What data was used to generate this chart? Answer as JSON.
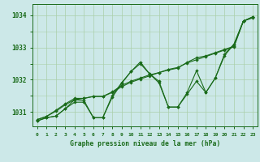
{
  "bg_color": "#cce8e8",
  "plot_bg_color": "#cce8e8",
  "line_color": "#1a6b1a",
  "grid_color": "#aacfaa",
  "xlabel": "Graphe pression niveau de la mer (hPa)",
  "xlabel_color": "#1a6b1a",
  "tick_color": "#1a6b1a",
  "xlim": [
    -0.5,
    23.5
  ],
  "ylim": [
    1030.55,
    1034.35
  ],
  "yticks": [
    1031,
    1032,
    1033,
    1034
  ],
  "xticks": [
    0,
    1,
    2,
    3,
    4,
    5,
    6,
    7,
    8,
    9,
    10,
    11,
    12,
    13,
    14,
    15,
    16,
    17,
    18,
    19,
    20,
    21,
    22,
    23
  ],
  "series": [
    [
      1030.72,
      1030.82,
      1030.87,
      1031.1,
      1031.38,
      1031.35,
      1030.82,
      1030.82,
      1031.5,
      1031.9,
      1032.25,
      1032.55,
      1032.18,
      1031.95,
      1031.15,
      1031.15,
      1031.55,
      1031.95,
      1031.6,
      1032.05,
      1032.75,
      1033.1,
      1033.82,
      1033.92
    ],
    [
      1030.72,
      1030.82,
      1030.87,
      1031.1,
      1031.3,
      1031.3,
      1030.82,
      1030.82,
      1031.45,
      1031.88,
      1032.25,
      1032.5,
      1032.18,
      1031.9,
      1031.15,
      1031.15,
      1031.6,
      1032.28,
      1031.6,
      1032.05,
      1032.8,
      1033.1,
      1033.82,
      1033.95
    ],
    [
      1030.76,
      1030.86,
      1031.02,
      1031.22,
      1031.38,
      1031.42,
      1031.48,
      1031.48,
      1031.6,
      1031.78,
      1031.92,
      1032.02,
      1032.12,
      1032.22,
      1032.32,
      1032.38,
      1032.52,
      1032.62,
      1032.72,
      1032.82,
      1032.92,
      1033.02,
      1033.82,
      1033.95
    ],
    [
      1030.76,
      1030.86,
      1031.05,
      1031.25,
      1031.42,
      1031.42,
      1031.48,
      1031.48,
      1031.62,
      1031.82,
      1031.95,
      1032.05,
      1032.15,
      1032.22,
      1032.3,
      1032.36,
      1032.54,
      1032.68,
      1032.74,
      1032.84,
      1032.94,
      1033.04,
      1033.82,
      1033.95
    ]
  ]
}
